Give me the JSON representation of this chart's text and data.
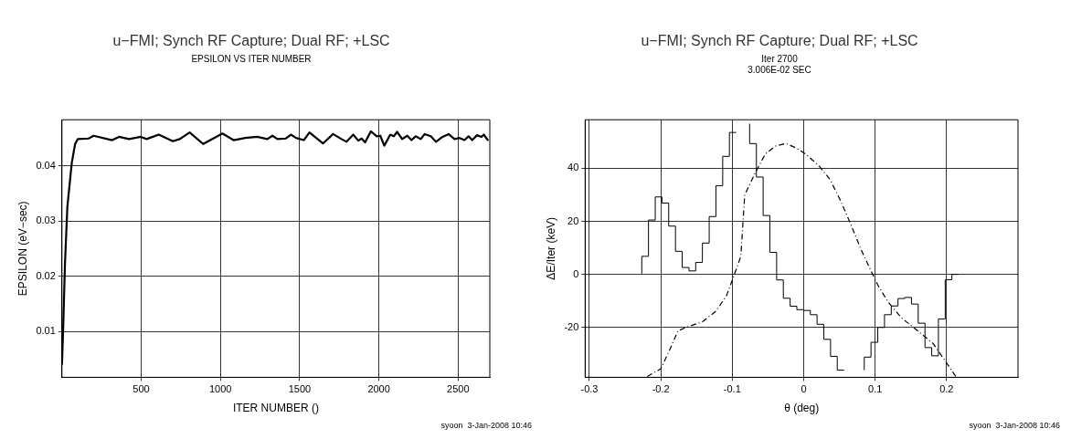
{
  "chart_data": [
    {
      "type": "line",
      "title": "u−FMI; Synch RF Capture; Dual RF; +LSC",
      "subtitle": "EPSILON VS ITER NUMBER",
      "xlabel": "ITER NUMBER ()",
      "ylabel": "EPSILON (eV−sec)",
      "xlim": [
        0,
        2700
      ],
      "xticks": [
        500,
        1000,
        1500,
        2000,
        2500
      ],
      "ylim": [
        0.0017,
        0.0484
      ],
      "yticks": [
        0.01,
        0.02,
        0.03,
        0.04
      ],
      "grid": true,
      "legend": false,
      "marker": "none",
      "line_style": "solid",
      "annotations": [
        "syoon  3-Jan-2008 10:46"
      ],
      "series": [
        {
          "color": "#000000",
          "x": [
            0,
            8,
            19,
            34,
            62,
            83,
            100,
            168,
            200,
            317,
            360,
            423,
            498,
            534,
            611,
            700,
            743,
            806,
            891,
            1013,
            1083,
            1157,
            1232,
            1296,
            1328,
            1360,
            1413,
            1445,
            1477,
            1526,
            1562,
            1647,
            1711,
            1764,
            1796,
            1838,
            1870,
            1891,
            1913,
            1949,
            1987,
            2009,
            2034,
            2072,
            2094,
            2115,
            2147,
            2179,
            2206,
            2232,
            2264,
            2289,
            2328,
            2360,
            2402,
            2440,
            2477,
            2509,
            2540,
            2566,
            2589,
            2619,
            2647,
            2662,
            2690
          ],
          "values": [
            0.004,
            0.0109,
            0.0223,
            0.0326,
            0.0406,
            0.044,
            0.0449,
            0.045,
            0.0455,
            0.0447,
            0.0453,
            0.0449,
            0.0453,
            0.0449,
            0.0457,
            0.0445,
            0.0449,
            0.0461,
            0.044,
            0.0459,
            0.0447,
            0.0451,
            0.0453,
            0.0449,
            0.0455,
            0.0449,
            0.045,
            0.0457,
            0.0451,
            0.0447,
            0.0461,
            0.0441,
            0.0458,
            0.0449,
            0.0444,
            0.0457,
            0.0446,
            0.045,
            0.0443,
            0.0463,
            0.0454,
            0.0455,
            0.0437,
            0.0457,
            0.0454,
            0.0462,
            0.0449,
            0.0455,
            0.0447,
            0.0454,
            0.0449,
            0.0458,
            0.0454,
            0.0444,
            0.0453,
            0.0458,
            0.0449,
            0.0451,
            0.0447,
            0.0454,
            0.0447,
            0.0456,
            0.0453,
            0.0457,
            0.0446
          ]
        }
      ]
    },
    {
      "type": "line",
      "title": "u−FMI; Synch RF Capture; Dual RF; +LSC",
      "subtitle": "Iter 2700\n3.006E-02 SEC",
      "xlabel": "θ (deg)",
      "ylabel": "ΔE/Iter (keV)",
      "xlim": [
        -0.306,
        0.3
      ],
      "xticks": [
        -0.3,
        -0.2,
        -0.1,
        0,
        0.1,
        0.2
      ],
      "ylim": [
        -38.8,
        58.3
      ],
      "yticks": [
        -20,
        0,
        20,
        40
      ],
      "grid": true,
      "legend": false,
      "marker": "none",
      "annotations": [
        "syoon  3-Jan-2008 10:46"
      ],
      "series": [
        {
          "type": "step",
          "color": "#000000",
          "line_style": "solid",
          "x": [
            -0.2267,
            -0.2173,
            -0.2078,
            -0.1984,
            -0.189,
            -0.1795,
            -0.1701,
            -0.1606,
            -0.1512,
            -0.1418,
            -0.1323,
            -0.1229,
            -0.1134,
            -0.104,
            -0.0946,
            -0.0851,
            -0.0757,
            -0.0662,
            -0.0568,
            -0.0474,
            -0.0379,
            -0.0285,
            -0.019,
            -0.0096,
            -0.0002,
            0.0093,
            0.0187,
            0.0282,
            0.0376,
            0.047,
            0.0565,
            0.0659,
            0.0754,
            0.0848,
            0.0942,
            0.1037,
            0.1131,
            0.1226,
            0.132,
            0.1414,
            0.1509,
            0.1603,
            0.1698,
            0.1792,
            0.1886,
            0.1981,
            0.2075,
            0.217
          ],
          "values": [
            0.3,
            6.8,
            20.5,
            29.2,
            26.9,
            18.2,
            8.7,
            2.6,
            1.3,
            4.5,
            11.8,
            21.8,
            33.4,
            44.5,
            53.5,
            null,
            56.8,
            49.3,
            36.7,
            22.2,
            8.3,
            -2.1,
            -9.0,
            -12.0,
            -13.3,
            -13.6,
            -15.2,
            -18.8,
            -24.5,
            -30.9,
            -36.1,
            null,
            null,
            -36.1,
            -31.2,
            -25.6,
            -20.0,
            -15.2,
            -11.9,
            -9.1,
            -8.7,
            -11.2,
            -18.4,
            -27.6,
            -30.7,
            -16.8,
            -2.0,
            0
          ]
        },
        {
          "type": "line",
          "color": "#000000",
          "line_style": "dashed",
          "x": [
            -0.219,
            -0.2,
            -0.187,
            -0.176,
            -0.165,
            -0.142,
            -0.123,
            -0.108,
            -0.097,
            -0.088,
            -0.0826,
            -0.068,
            -0.054,
            -0.04,
            -0.025,
            -0.011,
            0.0033,
            0.0224,
            0.0368,
            0.051,
            0.0654,
            0.0797,
            0.094,
            0.1036,
            0.118,
            0.137,
            0.156,
            0.175,
            0.181,
            0.2,
            0.213
          ],
          "values": [
            -38.5,
            -35.6,
            -28.1,
            -21.3,
            -20.0,
            -17.9,
            -13.9,
            -8.0,
            0,
            6.8,
            29.9,
            38.2,
            45.3,
            48.3,
            49.4,
            47.7,
            45.3,
            40.6,
            35.8,
            28.1,
            19.2,
            9.7,
            1.4,
            -3.9,
            -10.4,
            -16.4,
            -20.5,
            -24.7,
            -26.0,
            -33.4,
            -38.5
          ]
        }
      ]
    }
  ]
}
